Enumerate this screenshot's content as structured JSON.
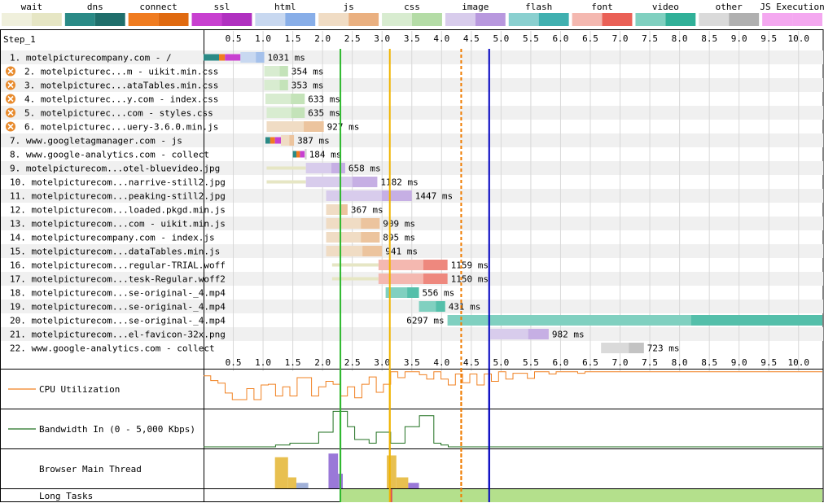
{
  "chart_data": {
    "type": "waterfall",
    "step_label": "Step_1",
    "ticks": [
      "0.5",
      "1.0",
      "1.5",
      "2.0",
      "2.5",
      "3.0",
      "3.5",
      "4.0",
      "4.5",
      "5.0",
      "5.5",
      "6.0",
      "6.5",
      "7.0",
      "7.5",
      "8.0",
      "8.5",
      "9.0",
      "9.5",
      "10.0"
    ],
    "axis_range": [
      0,
      10.4
    ],
    "legend": [
      {
        "label": "wait",
        "light": "#f0f0dc",
        "dark": "#e6e6c4"
      },
      {
        "label": "dns",
        "light": "#2a8a86",
        "dark": "#1f6e6b"
      },
      {
        "label": "connect",
        "light": "#f07c20",
        "dark": "#e06a10"
      },
      {
        "label": "ssl",
        "light": "#c840d0",
        "dark": "#b030c0"
      },
      {
        "label": "html",
        "light": "#c8d8f0",
        "dark": "#88aee8"
      },
      {
        "label": "js",
        "light": "#f0dcc4",
        "dark": "#eab080"
      },
      {
        "label": "css",
        "light": "#d8ecd0",
        "dark": "#b4dca6"
      },
      {
        "label": "image",
        "light": "#d8ccec",
        "dark": "#b898de"
      },
      {
        "label": "flash",
        "light": "#8ad0d0",
        "dark": "#40b0b0"
      },
      {
        "label": "font",
        "light": "#f4b8b0",
        "dark": "#ea6056"
      },
      {
        "label": "video",
        "light": "#80d0c0",
        "dark": "#30b098"
      },
      {
        "label": "other",
        "light": "#dadada",
        "dark": "#b0b0b0"
      },
      {
        "label": "JS Execution",
        "light": "#f4a8f0",
        "dark": "#f4a8f0"
      }
    ],
    "markers": [
      {
        "name": "start-render",
        "t": 2.3,
        "color": "#2fb82f",
        "style": "solid"
      },
      {
        "name": "dom-content-loaded",
        "t": 3.13,
        "color": "#f0b400",
        "style": "solid"
      },
      {
        "name": "on-load",
        "t": 4.33,
        "color": "#f07c00",
        "style": "dashed"
      },
      {
        "name": "document-complete",
        "t": 4.8,
        "color": "#0000c0",
        "style": "solid"
      }
    ],
    "requests": [
      {
        "label": "1. motelpicturecompany.com - /",
        "type": "html",
        "error": false,
        "wait": null,
        "dns": [
          0,
          0.26
        ],
        "connect": [
          0.26,
          0.36
        ],
        "ssl": [
          0.36,
          0.62
        ],
        "start": 0.62,
        "end": 1.02,
        "duration": "1031 ms"
      },
      {
        "label": "2. motelpicturec...m - uikit.min.css",
        "type": "css",
        "error": true,
        "wait": null,
        "start": 1.02,
        "end": 1.42,
        "duration": "354 ms"
      },
      {
        "label": "3. motelpicturec...ataTables.min.css",
        "type": "css",
        "error": true,
        "wait": null,
        "start": 1.02,
        "end": 1.42,
        "duration": "353 ms"
      },
      {
        "label": "4. motelpicturec...y.com - index.css",
        "type": "css",
        "error": true,
        "wait": null,
        "start": 1.04,
        "end": 1.7,
        "duration": "633 ms"
      },
      {
        "label": "5. motelpicturec...com - styles.css",
        "type": "css",
        "error": true,
        "wait": null,
        "start": 1.06,
        "end": 1.7,
        "duration": "635 ms"
      },
      {
        "label": "6. motelpicturec...uery-3.6.0.min.js",
        "type": "js",
        "error": true,
        "wait": null,
        "start": 1.06,
        "end": 2.02,
        "duration": "927 ms"
      },
      {
        "label": "7. www.googletagmanager.com - js",
        "type": "js",
        "error": false,
        "wait": null,
        "dns": [
          1.04,
          1.12
        ],
        "connect": [
          1.12,
          1.2
        ],
        "ssl": [
          1.2,
          1.3
        ],
        "start": 1.3,
        "end": 1.52,
        "duration": "387 ms"
      },
      {
        "label": "8. www.google-analytics.com - collect",
        "type": "other",
        "error": false,
        "wait": null,
        "dns": [
          1.5,
          1.56
        ],
        "connect": [
          1.56,
          1.62
        ],
        "ssl": [
          1.62,
          1.7
        ],
        "start": 1.7,
        "end": 1.72,
        "duration": "184 ms"
      },
      {
        "label": "9. motelpicturecom...otel-bluevideo.jpg",
        "type": "image",
        "error": false,
        "wait": [
          1.06,
          1.72
        ],
        "start": 1.72,
        "end": 2.38,
        "duration": "658 ms"
      },
      {
        "label": "10. motelpicturecom...narrive-still2.jpg",
        "type": "image",
        "error": false,
        "wait": [
          1.06,
          1.72
        ],
        "start": 1.72,
        "end": 2.92,
        "duration": "1182 ms"
      },
      {
        "label": "11. motelpicturecom...peaking-still2.jpg",
        "type": "image",
        "error": false,
        "wait": null,
        "start": 2.06,
        "end": 3.5,
        "duration": "1447 ms"
      },
      {
        "label": "12. motelpicturecom...loaded.pkgd.min.js",
        "type": "js",
        "error": false,
        "wait": null,
        "start": 2.06,
        "end": 2.42,
        "duration": "367 ms"
      },
      {
        "label": "13. motelpicturecom...com - uikit.min.js",
        "type": "js",
        "error": false,
        "wait": null,
        "start": 2.06,
        "end": 2.96,
        "duration": "909 ms"
      },
      {
        "label": "14. motelpicturecompany.com - index.js",
        "type": "js",
        "error": false,
        "wait": null,
        "start": 2.06,
        "end": 2.96,
        "duration": "895 ms"
      },
      {
        "label": "15. motelpicturecom...dataTables.min.js",
        "type": "js",
        "error": false,
        "wait": null,
        "start": 2.06,
        "end": 3.0,
        "duration": "941 ms"
      },
      {
        "label": "16. motelpicturecom...regular-TRIAL.woff",
        "type": "font",
        "error": false,
        "wait": [
          2.16,
          2.94
        ],
        "start": 2.94,
        "end": 4.1,
        "duration": "1159 ms"
      },
      {
        "label": "17. motelpicturecom...tesk-Regular.woff2",
        "type": "font",
        "error": false,
        "wait": [
          2.16,
          2.94
        ],
        "start": 2.94,
        "end": 4.1,
        "duration": "1150 ms"
      },
      {
        "label": "18. motelpicturecom...se-original-_4.mp4",
        "type": "video",
        "error": false,
        "wait": null,
        "start": 3.06,
        "end": 3.62,
        "duration": "556 ms"
      },
      {
        "label": "19. motelpicturecom...se-original-_4.mp4",
        "type": "video",
        "error": false,
        "wait": null,
        "start": 3.62,
        "end": 4.06,
        "duration": "431 ms"
      },
      {
        "label": "20. motelpicturecom...se-original-_4.mp4",
        "type": "video",
        "error": false,
        "wait": null,
        "start": 4.1,
        "end": 10.4,
        "duration": "6297 ms",
        "label_left": true
      },
      {
        "label": "21. motelpicturecom...el-favicon-32x.png",
        "type": "image",
        "error": false,
        "wait": null,
        "start": 4.82,
        "end": 5.8,
        "duration": "982 ms"
      },
      {
        "label": "22. www.google-analytics.com - collect",
        "type": "other",
        "error": false,
        "wait": null,
        "start": 6.68,
        "end": 7.4,
        "duration": "723 ms"
      }
    ],
    "cpu": {
      "label": "CPU Utilization",
      "color": "#f08020",
      "values": [
        0.85,
        0.72,
        0.65,
        0.38,
        0.2,
        0.2,
        0.5,
        0.2,
        0.6,
        0.62,
        0.3,
        0.55,
        0.3,
        0.8,
        0.8,
        0.3,
        0.55,
        0.7,
        0.62,
        0.3,
        0.55,
        0.25,
        0.62,
        0.82,
        0.4,
        0.62,
        0.96,
        0.8,
        0.96,
        0.96,
        0.88,
        0.76,
        0.96,
        0.76,
        0.6,
        0.9,
        0.66,
        0.9,
        0.6,
        0.9,
        0.7,
        0.96,
        0.76,
        0.92,
        0.92,
        0.78,
        0.96,
        0.96,
        0.9,
        0.96,
        0.96,
        0.96,
        0.92,
        0.96,
        0.96,
        0.96,
        0.96,
        0.96,
        0.96,
        0.96,
        0.96,
        0.96,
        0.96,
        0.96,
        0.96,
        0.96,
        0.96,
        0.96,
        0.96,
        0.96,
        0.96,
        0.96,
        0.96,
        0.96,
        0.96,
        0.96,
        0.96,
        0.96,
        0.96,
        0.96,
        0.96,
        0.96,
        0.96,
        0.96,
        0.96,
        0.96
      ]
    },
    "bandwidth": {
      "label": "Bandwidth In (0 - 5,000 Kbps)",
      "color": "#207020",
      "values": [
        0,
        0,
        0,
        0,
        0,
        0,
        0,
        0,
        0,
        0,
        0.05,
        0.05,
        0.1,
        0.1,
        0.1,
        0.1,
        0.4,
        0.4,
        0.97,
        0.97,
        0.55,
        0.2,
        0.2,
        0.1,
        0.4,
        0.4,
        0.1,
        0.1,
        0.55,
        0.55,
        0.85,
        0.85,
        0.1,
        0.05,
        0,
        0,
        0,
        0,
        0,
        0,
        0,
        0,
        0,
        0,
        0,
        0,
        0,
        0,
        0,
        0,
        0,
        0,
        0,
        0,
        0,
        0,
        0,
        0,
        0,
        0,
        0,
        0,
        0,
        0,
        0,
        0,
        0,
        0,
        0,
        0,
        0,
        0,
        0,
        0,
        0,
        0,
        0,
        0,
        0,
        0,
        0,
        0,
        0,
        0,
        0,
        0
      ]
    },
    "main_thread": {
      "label": "Browser Main Thread",
      "activity": [
        {
          "t0": 1.2,
          "t1": 1.42,
          "level": 0.85,
          "color": "#e8c050"
        },
        {
          "t0": 1.42,
          "t1": 1.56,
          "level": 0.3,
          "color": "#e8c050"
        },
        {
          "t0": 1.56,
          "t1": 1.76,
          "level": 0.15,
          "color": "#a0b0d8"
        },
        {
          "t0": 2.1,
          "t1": 2.26,
          "level": 0.95,
          "color": "#9a78d8"
        },
        {
          "t0": 2.26,
          "t1": 2.34,
          "level": 0.4,
          "color": "#9a78d8"
        },
        {
          "t0": 3.08,
          "t1": 3.24,
          "level": 0.9,
          "color": "#e8c050"
        },
        {
          "t0": 3.24,
          "t1": 3.44,
          "level": 0.3,
          "color": "#e8c050"
        },
        {
          "t0": 3.44,
          "t1": 3.62,
          "level": 0.15,
          "color": "#9a78d8"
        }
      ]
    },
    "long_tasks": {
      "label": "Long Tasks",
      "start": 2.3,
      "end": 10.4,
      "color": "#b4e08c",
      "highlight_t": 3.13,
      "highlight_color": "#e05050"
    }
  }
}
